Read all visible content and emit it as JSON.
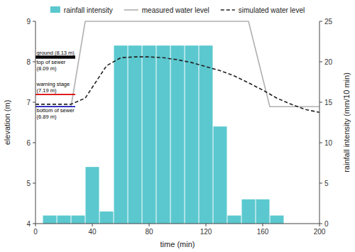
{
  "chart_data": {
    "type": "line",
    "xlabel": "time (min)",
    "ylabel": "elevation (m)",
    "y2label": "rainfall intensity (mm/10 min)",
    "xlim": [
      0,
      200
    ],
    "ylim": [
      4,
      9
    ],
    "y2lim": [
      0,
      25
    ],
    "xticks": [
      0,
      40,
      80,
      120,
      160,
      200
    ],
    "yticks": [
      4,
      5,
      6,
      7,
      8,
      9
    ],
    "y2ticks": [
      0,
      5,
      10,
      15,
      20,
      25
    ],
    "legend": "top",
    "series": [
      {
        "name": "rainfall intensity",
        "type": "bar",
        "axis": "y2",
        "color": "#5bc8cf",
        "x": [
          10,
          20,
          30,
          40,
          50,
          60,
          70,
          80,
          90,
          100,
          110,
          120,
          130,
          140,
          150,
          160,
          170
        ],
        "values": [
          1.0,
          1.0,
          1.0,
          7.0,
          1.5,
          22.0,
          22.0,
          22.0,
          22.0,
          22.0,
          22.0,
          22.0,
          12.0,
          1.0,
          3.0,
          3.0,
          1.0
        ]
      },
      {
        "name": "measured water level",
        "type": "line",
        "color": "#b0b0b0",
        "line_style": "solid",
        "x": [
          0,
          25,
          35,
          55,
          140,
          150,
          165,
          175,
          200
        ],
        "values": [
          6.89,
          6.89,
          9.0,
          9.0,
          9.0,
          9.0,
          6.89,
          6.89,
          6.89
        ]
      },
      {
        "name": "simulated water level",
        "type": "line",
        "color": "#222222",
        "line_style": "dashed",
        "x": [
          0,
          25,
          35,
          50,
          60,
          70,
          80,
          90,
          100,
          110,
          120,
          130,
          140,
          150,
          160,
          170,
          180,
          190,
          200
        ],
        "values": [
          6.95,
          6.95,
          7.1,
          7.9,
          8.1,
          8.12,
          8.12,
          8.1,
          8.05,
          7.98,
          7.88,
          7.78,
          7.65,
          7.48,
          7.3,
          7.1,
          6.95,
          6.82,
          6.75
        ]
      }
    ],
    "reference_lines": [
      {
        "value": 8.13,
        "x": [
          0,
          28
        ],
        "color": "#000000",
        "label": "ground (8.13 m)"
      },
      {
        "value": 8.09,
        "x": [
          0,
          28
        ],
        "color": "#111111",
        "label": "top of sewer\n(8.09 m)"
      },
      {
        "value": 7.19,
        "x": [
          0,
          28
        ],
        "color": "#dd0000",
        "label": "warning stage\n(7.19 m)"
      },
      {
        "value": 6.89,
        "x": [
          0,
          28
        ],
        "color": "#0000bb",
        "label": "bottom of sewer\n(6.89 m)"
      }
    ]
  }
}
